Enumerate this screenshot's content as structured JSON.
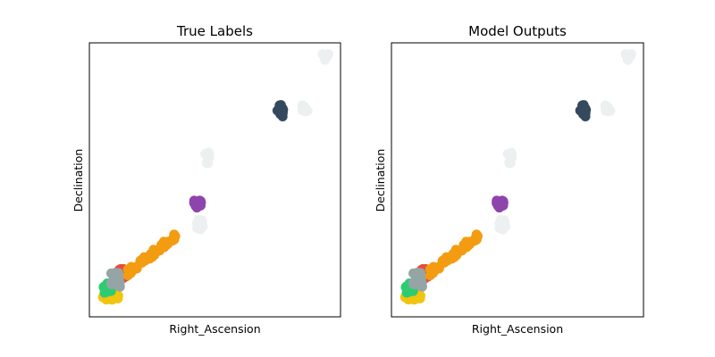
{
  "figure": {
    "panels": [
      {
        "title": "True Labels",
        "xlabel": "Right_Ascension",
        "ylabel": "Declination"
      },
      {
        "title": "Model Outputs",
        "xlabel": "Right_Ascension",
        "ylabel": "Declination"
      }
    ]
  },
  "chart_data": [
    {
      "type": "scatter",
      "title": "True Labels",
      "xlabel": "Right_Ascension",
      "ylabel": "Declination",
      "xlim": [
        0,
        100
      ],
      "ylim": [
        0,
        100
      ],
      "ticks_visible": false,
      "grid": false,
      "legend": "none",
      "clusters": [
        {
          "color": "#f1c40f",
          "center": [
            8.5,
            8.0
          ],
          "spread": [
            3.2,
            1.8
          ],
          "points": 30
        },
        {
          "color": "#2ecc71",
          "center": [
            7.0,
            10.5
          ],
          "spread": [
            1.8,
            1.8
          ],
          "points": 18
        },
        {
          "color": "#e74c3c",
          "center": [
            13.0,
            16.0
          ],
          "spread": [
            1.8,
            2.0
          ],
          "points": 20
        },
        {
          "color": "#95a5a6",
          "center": [
            10.5,
            13.5
          ],
          "spread": [
            1.8,
            3.0
          ],
          "points": 22
        },
        {
          "color": "#f39c12",
          "center": [
            25.0,
            23.0
          ],
          "spread": [
            10.0,
            7.0
          ],
          "points": 45
        },
        {
          "color": "#8e44ad",
          "center": [
            43.0,
            41.0
          ],
          "spread": [
            1.5,
            1.5
          ],
          "points": 16
        },
        {
          "color": "#ecf0f1",
          "center": [
            44.0,
            33.5
          ],
          "spread": [
            1.2,
            2.0
          ],
          "points": 12
        },
        {
          "color": "#ecf0f1",
          "center": [
            47.0,
            58.0
          ],
          "spread": [
            1.0,
            2.0
          ],
          "points": 12
        },
        {
          "color": "#34495e",
          "center": [
            76.0,
            75.0
          ],
          "spread": [
            1.2,
            2.5
          ],
          "points": 16
        },
        {
          "color": "#ecf0f1",
          "center": [
            85.5,
            76.0
          ],
          "spread": [
            1.5,
            1.2
          ],
          "points": 10
        },
        {
          "color": "#ecf0f1",
          "center": [
            94.0,
            94.5
          ],
          "spread": [
            1.2,
            1.5
          ],
          "points": 10
        }
      ]
    },
    {
      "type": "scatter",
      "title": "Model Outputs",
      "xlabel": "Right_Ascension",
      "ylabel": "Declination",
      "xlim": [
        0,
        100
      ],
      "ylim": [
        0,
        100
      ],
      "ticks_visible": false,
      "grid": false,
      "legend": "none",
      "clusters": [
        {
          "color": "#f1c40f",
          "center": [
            8.5,
            8.0
          ],
          "spread": [
            3.2,
            1.8
          ],
          "points": 30
        },
        {
          "color": "#2ecc71",
          "center": [
            7.0,
            10.5
          ],
          "spread": [
            1.8,
            1.8
          ],
          "points": 18
        },
        {
          "color": "#e74c3c",
          "center": [
            13.0,
            16.0
          ],
          "spread": [
            1.8,
            2.0
          ],
          "points": 20
        },
        {
          "color": "#95a5a6",
          "center": [
            10.5,
            13.5
          ],
          "spread": [
            1.8,
            3.0
          ],
          "points": 22
        },
        {
          "color": "#f39c12",
          "center": [
            25.0,
            23.0
          ],
          "spread": [
            10.0,
            7.0
          ],
          "points": 45
        },
        {
          "color": "#8e44ad",
          "center": [
            43.0,
            41.0
          ],
          "spread": [
            1.5,
            1.5
          ],
          "points": 16
        },
        {
          "color": "#ecf0f1",
          "center": [
            44.0,
            33.5
          ],
          "spread": [
            1.2,
            2.0
          ],
          "points": 12
        },
        {
          "color": "#ecf0f1",
          "center": [
            47.0,
            58.0
          ],
          "spread": [
            1.0,
            2.0
          ],
          "points": 12
        },
        {
          "color": "#34495e",
          "center": [
            76.0,
            75.0
          ],
          "spread": [
            1.2,
            2.5
          ],
          "points": 16
        },
        {
          "color": "#ecf0f1",
          "center": [
            85.5,
            76.0
          ],
          "spread": [
            1.5,
            1.2
          ],
          "points": 10
        },
        {
          "color": "#ecf0f1",
          "center": [
            94.0,
            94.5
          ],
          "spread": [
            1.2,
            1.5
          ],
          "points": 10
        }
      ]
    }
  ]
}
